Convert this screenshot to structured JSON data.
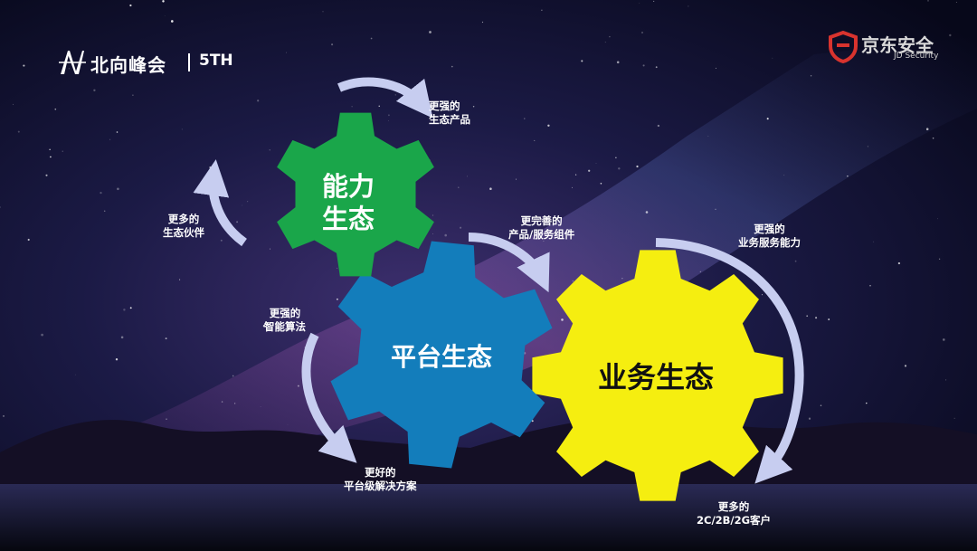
{
  "header": {
    "event_name": "北向峰会",
    "edition": "5TH",
    "brand_cn": "京东安全",
    "brand_en": "JD Security"
  },
  "gears": {
    "capability": {
      "line1": "能力",
      "line2": "生态",
      "color": "#1aa64a",
      "text_color": "#ffffff"
    },
    "platform": {
      "label": "平台生态",
      "color": "#137dbb",
      "text_color": "#ffffff"
    },
    "business": {
      "label": "业务生态",
      "color": "#f5ee10",
      "text_color": "#111111"
    }
  },
  "arrows": {
    "stronger_products": {
      "line1": "更强的",
      "line2": "生态产品"
    },
    "more_partners": {
      "line1": "更多的",
      "line2": "生态伙伴"
    },
    "better_components": {
      "line1": "更完善的",
      "line2": "产品/服务组件"
    },
    "stronger_business": {
      "line1": "更强的",
      "line2": "业务服务能力"
    },
    "stronger_algorithms": {
      "line1": "更强的",
      "line2": "智能算法"
    },
    "better_solutions": {
      "line1": "更好的",
      "line2": "平台级解决方案"
    },
    "more_customers": {
      "line1": "更多的",
      "line2": "2C/2B/2G客户"
    }
  },
  "colors": {
    "arrow": "#c7cdf0",
    "brand_red": "#d8332e"
  }
}
